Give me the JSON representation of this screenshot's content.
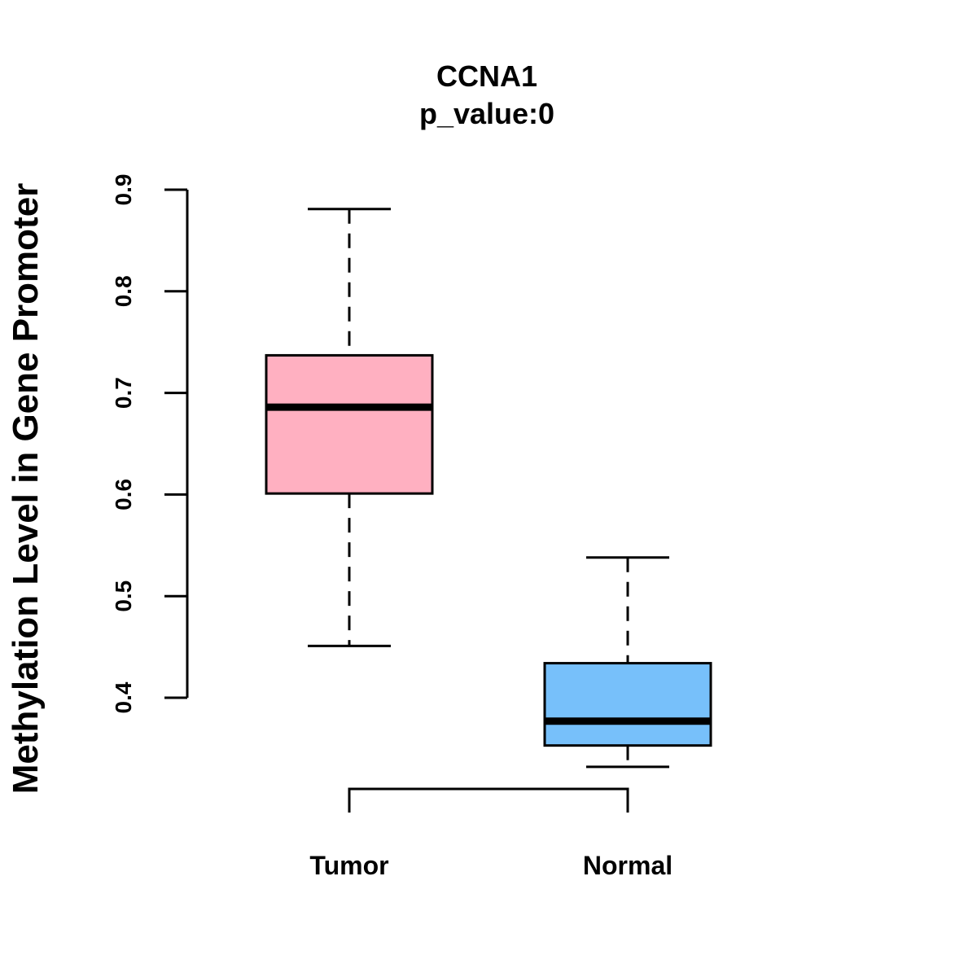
{
  "chart_data": {
    "type": "boxplot",
    "title": "CCNA1",
    "subtitle": "p_value:0",
    "xlabel": "",
    "ylabel": "Methylation Level in Gene Promoter",
    "ylim": [
      0.4,
      0.9
    ],
    "yticks": [
      0.4,
      0.5,
      0.6,
      0.7,
      0.8,
      0.9
    ],
    "ytick_labels": [
      "0.4",
      "0.5",
      "0.6",
      "0.7",
      "0.8",
      "0.9"
    ],
    "categories": [
      "Tumor",
      "Normal"
    ],
    "series": [
      {
        "name": "Tumor",
        "min": 0.451,
        "q1": 0.601,
        "median": 0.686,
        "q3": 0.737,
        "max": 0.881,
        "color": "#FFB0C1"
      },
      {
        "name": "Normal",
        "min": 0.332,
        "q1": 0.353,
        "median": 0.377,
        "q3": 0.434,
        "max": 0.538,
        "color": "#77C0FA"
      }
    ],
    "comparison_bracket": [
      "Tumor",
      "Normal"
    ],
    "grid": false,
    "legend": "none"
  }
}
